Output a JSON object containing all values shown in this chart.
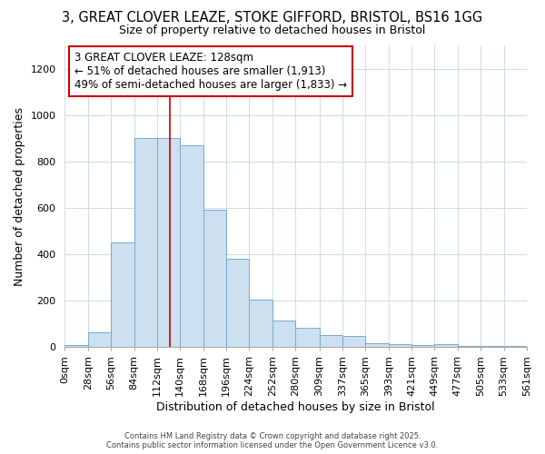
{
  "title": "3, GREAT CLOVER LEAZE, STOKE GIFFORD, BRISTOL, BS16 1GG",
  "subtitle": "Size of property relative to detached houses in Bristol",
  "xlabel": "Distribution of detached houses by size in Bristol",
  "ylabel": "Number of detached properties",
  "bin_edges": [
    0,
    28,
    56,
    84,
    112,
    140,
    168,
    196,
    224,
    252,
    280,
    309,
    337,
    365,
    393,
    421,
    449,
    477,
    505,
    533,
    561
  ],
  "bar_heights": [
    10,
    65,
    450,
    900,
    900,
    870,
    590,
    380,
    205,
    113,
    85,
    52,
    48,
    15,
    12,
    10,
    12,
    5,
    5,
    5
  ],
  "bar_color": "#cce0f0",
  "bar_edge_color": "#7aaacc",
  "vline_x": 128,
  "vline_color": "#cc0000",
  "ylim": [
    0,
    1300
  ],
  "yticks": [
    0,
    200,
    400,
    600,
    800,
    1000,
    1200
  ],
  "annotation_text": "3 GREAT CLOVER LEAZE: 128sqm\n← 51% of detached houses are smaller (1,913)\n49% of semi-detached houses are larger (1,833) →",
  "annotation_box_color": "#cc0000",
  "footer_line1": "Contains HM Land Registry data © Crown copyright and database right 2025.",
  "footer_line2": "Contains public sector information licensed under the Open Government Licence v3.0.",
  "background_color": "#ffffff",
  "grid_color": "#d0dce8",
  "title_fontsize": 10.5,
  "subtitle_fontsize": 9,
  "axis_label_fontsize": 9,
  "tick_fontsize": 8,
  "annotation_fontsize": 8.5,
  "footer_fontsize": 6
}
